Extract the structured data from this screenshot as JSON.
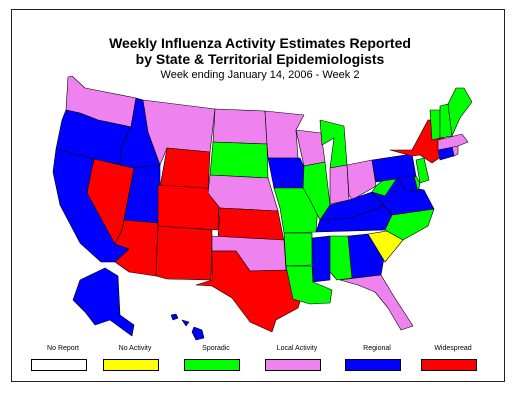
{
  "title_line1": "Weekly Influenza Activity Estimates Reported",
  "title_line2": "by State & Territorial Epidemiologists",
  "subtitle": "Week ending January 14, 2006 - Week 2",
  "colors": {
    "no_report": "#ffffff",
    "no_activity": "#ffff00",
    "sporadic": "#00ff00",
    "local": "#ee82ee",
    "regional": "#0000ff",
    "widespread": "#ff0000"
  },
  "legend": [
    {
      "label": "No Report",
      "color_key": "no_report"
    },
    {
      "label": "No Activity",
      "color_key": "no_activity"
    },
    {
      "label": "Sporadic",
      "color_key": "sporadic"
    },
    {
      "label": "Local Activity",
      "color_key": "local"
    },
    {
      "label": "Regional",
      "color_key": "regional"
    },
    {
      "label": "Widespread",
      "color_key": "widespread"
    }
  ],
  "states": [
    {
      "id": "WA",
      "activity": "local"
    },
    {
      "id": "OR",
      "activity": "regional"
    },
    {
      "id": "CA",
      "activity": "regional"
    },
    {
      "id": "NV",
      "activity": "widespread"
    },
    {
      "id": "ID",
      "activity": "regional"
    },
    {
      "id": "MT",
      "activity": "local"
    },
    {
      "id": "WY",
      "activity": "widespread"
    },
    {
      "id": "UT",
      "activity": "regional"
    },
    {
      "id": "AZ",
      "activity": "widespread"
    },
    {
      "id": "CO",
      "activity": "widespread"
    },
    {
      "id": "NM",
      "activity": "widespread"
    },
    {
      "id": "ND",
      "activity": "local"
    },
    {
      "id": "SD",
      "activity": "sporadic"
    },
    {
      "id": "NE",
      "activity": "local"
    },
    {
      "id": "KS",
      "activity": "widespread"
    },
    {
      "id": "OK",
      "activity": "local"
    },
    {
      "id": "TX",
      "activity": "widespread"
    },
    {
      "id": "MN",
      "activity": "local"
    },
    {
      "id": "IA",
      "activity": "regional"
    },
    {
      "id": "MO",
      "activity": "sporadic"
    },
    {
      "id": "AR",
      "activity": "sporadic"
    },
    {
      "id": "LA",
      "activity": "sporadic"
    },
    {
      "id": "WI",
      "activity": "local"
    },
    {
      "id": "IL",
      "activity": "sporadic"
    },
    {
      "id": "MI",
      "activity": "sporadic"
    },
    {
      "id": "IN",
      "activity": "local"
    },
    {
      "id": "OH",
      "activity": "local"
    },
    {
      "id": "KY",
      "activity": "regional"
    },
    {
      "id": "TN",
      "activity": "regional"
    },
    {
      "id": "MS",
      "activity": "regional"
    },
    {
      "id": "AL",
      "activity": "sporadic"
    },
    {
      "id": "GA",
      "activity": "regional"
    },
    {
      "id": "FL",
      "activity": "local"
    },
    {
      "id": "SC",
      "activity": "no_activity"
    },
    {
      "id": "NC",
      "activity": "sporadic"
    },
    {
      "id": "VA",
      "activity": "regional"
    },
    {
      "id": "WV",
      "activity": "sporadic"
    },
    {
      "id": "PA",
      "activity": "regional"
    },
    {
      "id": "NY",
      "activity": "widespread"
    },
    {
      "id": "NJ",
      "activity": "sporadic"
    },
    {
      "id": "DE",
      "activity": "sporadic"
    },
    {
      "id": "MD",
      "activity": "regional"
    },
    {
      "id": "CT",
      "activity": "regional"
    },
    {
      "id": "RI",
      "activity": "local"
    },
    {
      "id": "MA",
      "activity": "local"
    },
    {
      "id": "VT",
      "activity": "sporadic"
    },
    {
      "id": "NH",
      "activity": "sporadic"
    },
    {
      "id": "ME",
      "activity": "sporadic"
    },
    {
      "id": "AK",
      "activity": "regional"
    },
    {
      "id": "HI",
      "activity": "regional"
    }
  ]
}
